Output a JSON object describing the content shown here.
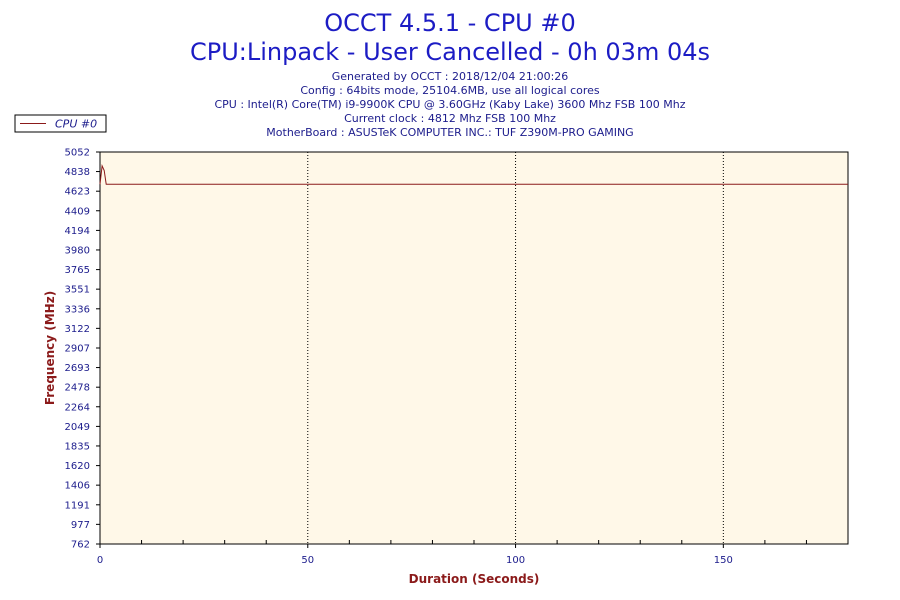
{
  "header": {
    "title_line1": "OCCT 4.5.1 - CPU #0",
    "title_line2": "CPU:Linpack - User Cancelled - 0h 03m 04s",
    "info_lines": [
      "Generated by OCCT : 2018/12/04 21:00:26",
      "Config : 64bits mode, 25104.6MB, use all logical cores",
      "CPU : Intel(R) Core(TM) i9-9900K CPU @ 3.60GHz (Kaby Lake) 3600 Mhz FSB 100 Mhz",
      "Current clock : 4812 Mhz FSB 100 Mhz",
      "MotherBoard : ASUSTeK COMPUTER INC.: TUF Z390M-PRO GAMING"
    ]
  },
  "colors": {
    "plot_background": "#fff8e8",
    "series": "#8b1a1a",
    "title": "#1c1cc4"
  },
  "chart_data": {
    "type": "line",
    "xlabel": "Duration (Seconds)",
    "ylabel": "Frequency (MHz)",
    "xlim": [
      0,
      180
    ],
    "ylim": [
      762,
      5052
    ],
    "x_ticks": [
      0,
      50,
      100,
      150
    ],
    "y_ticks": [
      762,
      977,
      1191,
      1406,
      1620,
      1835,
      2049,
      2264,
      2478,
      2693,
      2907,
      3122,
      3336,
      3551,
      3765,
      3980,
      4194,
      4409,
      4623,
      4838,
      5052
    ],
    "grid": "vertical-dotted",
    "legend": "top-left",
    "series": [
      {
        "name": "CPU #0",
        "x": [
          0,
          0.5,
          1,
          1.5,
          2,
          3,
          10,
          20,
          30,
          40,
          50,
          60,
          70,
          80,
          90,
          100,
          110,
          120,
          130,
          140,
          150,
          160,
          170,
          180
        ],
        "y": [
          4700,
          4900,
          4850,
          4700,
          4700,
          4700,
          4700,
          4700,
          4700,
          4700,
          4700,
          4700,
          4700,
          4700,
          4700,
          4700,
          4700,
          4700,
          4700,
          4700,
          4700,
          4700,
          4700,
          4700
        ]
      }
    ]
  }
}
